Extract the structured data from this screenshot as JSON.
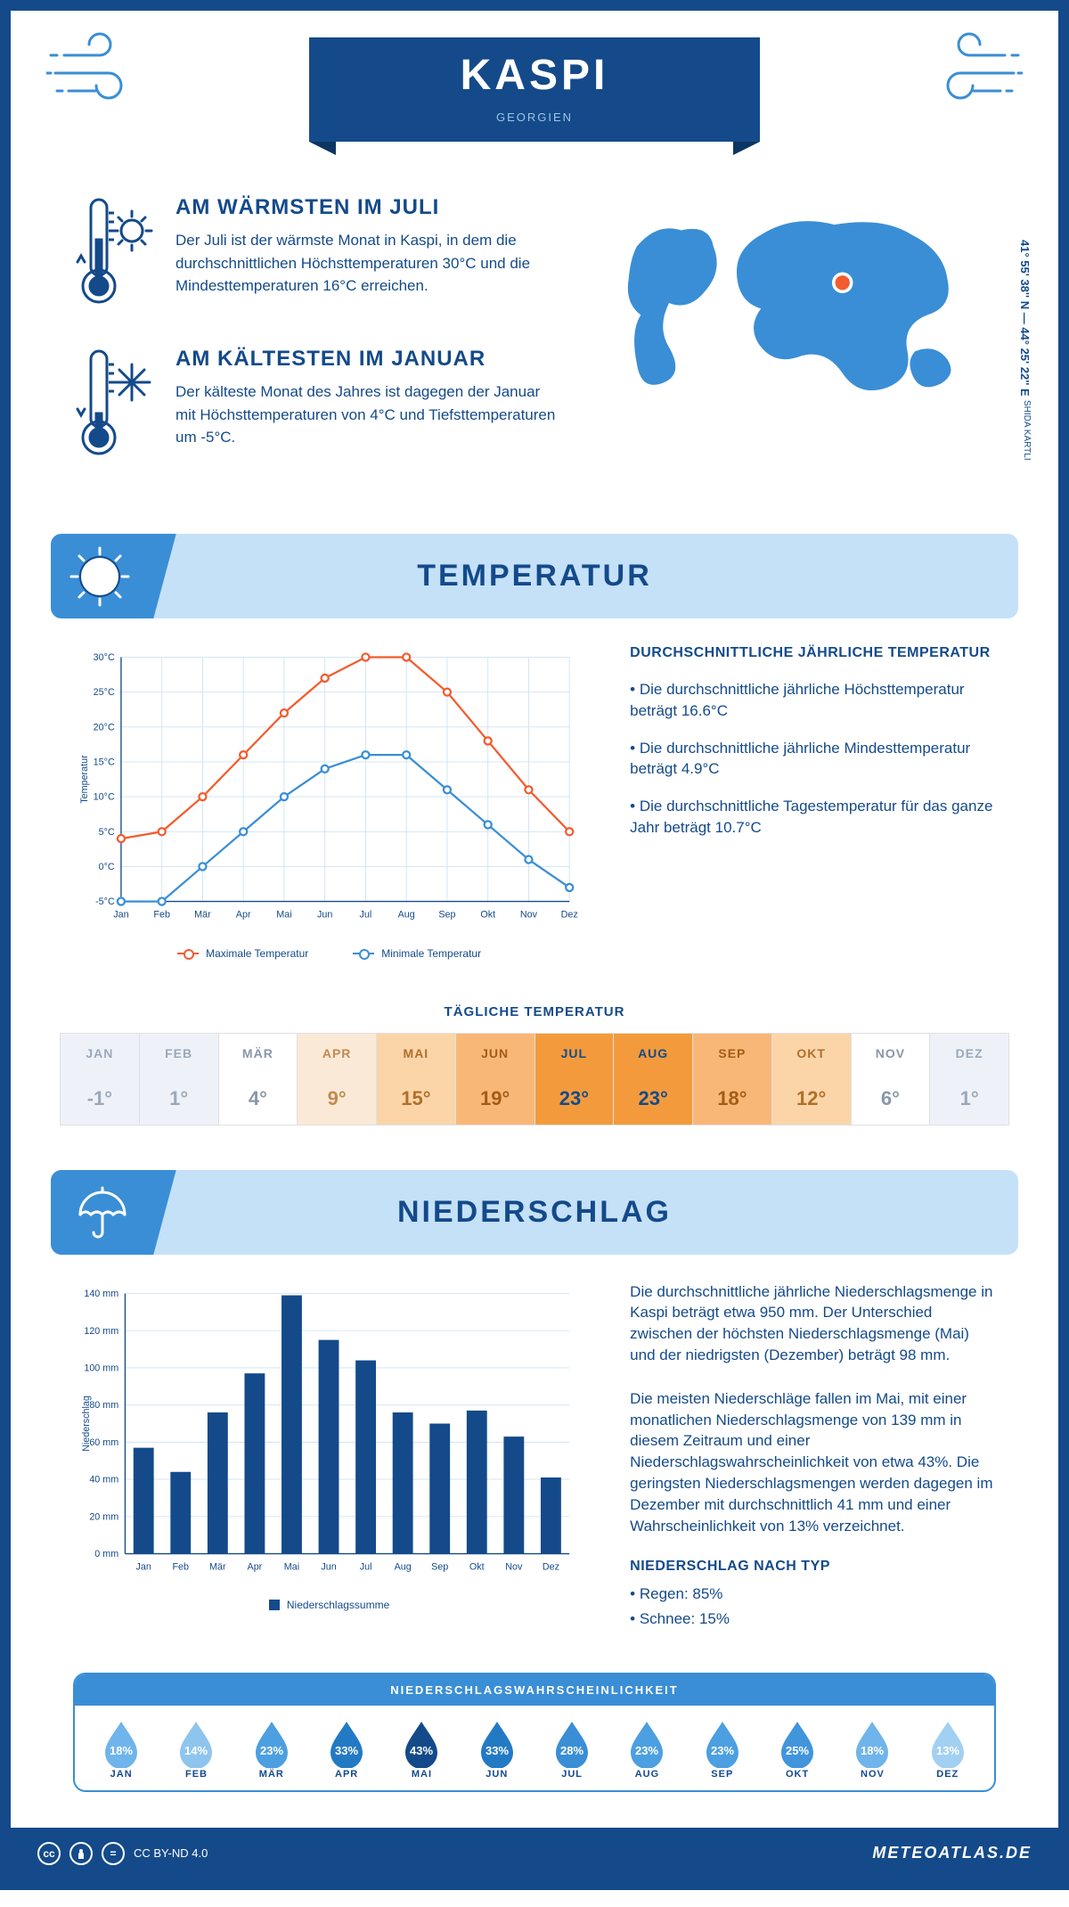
{
  "header": {
    "city": "KASPI",
    "country": "GEORGIEN"
  },
  "coords": "41° 55' 38'' N — 44° 25' 22'' E",
  "region": "SHIDA KARTLI",
  "warm": {
    "title": "AM WÄRMSTEN IM JULI",
    "text": "Der Juli ist der wärmste Monat in Kaspi, in dem die durchschnittlichen Höchsttemperaturen 30°C und die Mindesttemperaturen 16°C erreichen."
  },
  "cold": {
    "title": "AM KÄLTESTEN IM JANUAR",
    "text": "Der kälteste Monat des Jahres ist dagegen der Januar mit Höchsttemperaturen von 4°C und Tiefsttemperaturen um -5°C."
  },
  "sectionTemp": "TEMPERATUR",
  "sectionPrecip": "NIEDERSCHLAG",
  "months": [
    "Jan",
    "Feb",
    "Mär",
    "Apr",
    "Mai",
    "Jun",
    "Jul",
    "Aug",
    "Sep",
    "Okt",
    "Nov",
    "Dez"
  ],
  "monthsUpper": [
    "JAN",
    "FEB",
    "MÄR",
    "APR",
    "MAI",
    "JUN",
    "JUL",
    "AUG",
    "SEP",
    "OKT",
    "NOV",
    "DEZ"
  ],
  "tempChart": {
    "yLabel": "Temperatur",
    "ylim": [
      -5,
      30
    ],
    "ystep": 5,
    "max": {
      "label": "Maximale Temperatur",
      "color": "#f25c2e",
      "values": [
        4,
        5,
        10,
        16,
        22,
        27,
        30,
        30,
        25,
        18,
        11,
        5
      ]
    },
    "min": {
      "label": "Minimale Temperatur",
      "color": "#3a8ed6",
      "values": [
        -5,
        -5,
        0,
        5,
        10,
        14,
        16,
        16,
        11,
        6,
        1,
        -3
      ]
    }
  },
  "tempInfo": {
    "title": "DURCHSCHNITTLICHE JÄHRLICHE TEMPERATUR",
    "b1": "• Die durchschnittliche jährliche Höchsttemperatur beträgt 16.6°C",
    "b2": "• Die durchschnittliche jährliche Mindesttemperatur beträgt 4.9°C",
    "b3": "• Die durchschnittliche Tagestemperatur für das ganze Jahr beträgt 10.7°C"
  },
  "dailyTitle": "TÄGLICHE TEMPERATUR",
  "daily": {
    "values": [
      "-1°",
      "1°",
      "4°",
      "9°",
      "15°",
      "19°",
      "23°",
      "23°",
      "18°",
      "12°",
      "6°",
      "1°"
    ],
    "bg": [
      "#eef2f8",
      "#eef2f8",
      "#ffffff",
      "#fbe9d7",
      "#fbd5a8",
      "#f9b777",
      "#f39b3c",
      "#f39b3c",
      "#f9b777",
      "#fbd5a8",
      "#ffffff",
      "#eef2f8"
    ],
    "fg": [
      "#9aa8bb",
      "#9aa8bb",
      "#8a97a8",
      "#c18952",
      "#b06f2a",
      "#a35c16",
      "#144a8a",
      "#144a8a",
      "#a35c16",
      "#b06f2a",
      "#8a97a8",
      "#9aa8bb"
    ]
  },
  "precipChart": {
    "yLabel": "Niederschlag",
    "ylim": [
      0,
      140
    ],
    "ystep": 20,
    "color": "#144a8a",
    "values": [
      57,
      44,
      76,
      97,
      139,
      115,
      104,
      76,
      70,
      77,
      63,
      41
    ],
    "legendLabel": "Niederschlagssumme"
  },
  "precipText": {
    "p1": "Die durchschnittliche jährliche Niederschlagsmenge in Kaspi beträgt etwa 950 mm. Der Unterschied zwischen der höchsten Niederschlagsmenge (Mai) und der niedrigsten (Dezember) beträgt 98 mm.",
    "p2": "Die meisten Niederschläge fallen im Mai, mit einer monatlichen Niederschlagsmenge von 139 mm in diesem Zeitraum und einer Niederschlagswahrscheinlichkeit von etwa 43%. Die geringsten Niederschlagsmengen werden dagegen im Dezember mit durchschnittlich 41 mm und einer Wahrscheinlichkeit von 13% verzeichnet.",
    "typeTitle": "NIEDERSCHLAG NACH TYP",
    "rain": "• Regen: 85%",
    "snow": "• Schnee: 15%"
  },
  "probTitle": "NIEDERSCHLAGSWAHRSCHEINLICHKEIT",
  "prob": {
    "values": [
      "18%",
      "14%",
      "23%",
      "33%",
      "43%",
      "33%",
      "28%",
      "23%",
      "23%",
      "25%",
      "18%",
      "13%"
    ],
    "fill": [
      "#6fb4ea",
      "#8ec5ef",
      "#4c9fe0",
      "#237ac4",
      "#144a8a",
      "#237ac4",
      "#3a8ed6",
      "#4c9fe0",
      "#4c9fe0",
      "#4295db",
      "#6fb4ea",
      "#a2d0f2"
    ]
  },
  "footer": {
    "license": "CC BY-ND 4.0",
    "site": "METEOATLAS.DE"
  },
  "colors": {
    "primary": "#144a8a",
    "lightBlue": "#3a8ed6",
    "panelBlue": "#c5e1f8"
  }
}
